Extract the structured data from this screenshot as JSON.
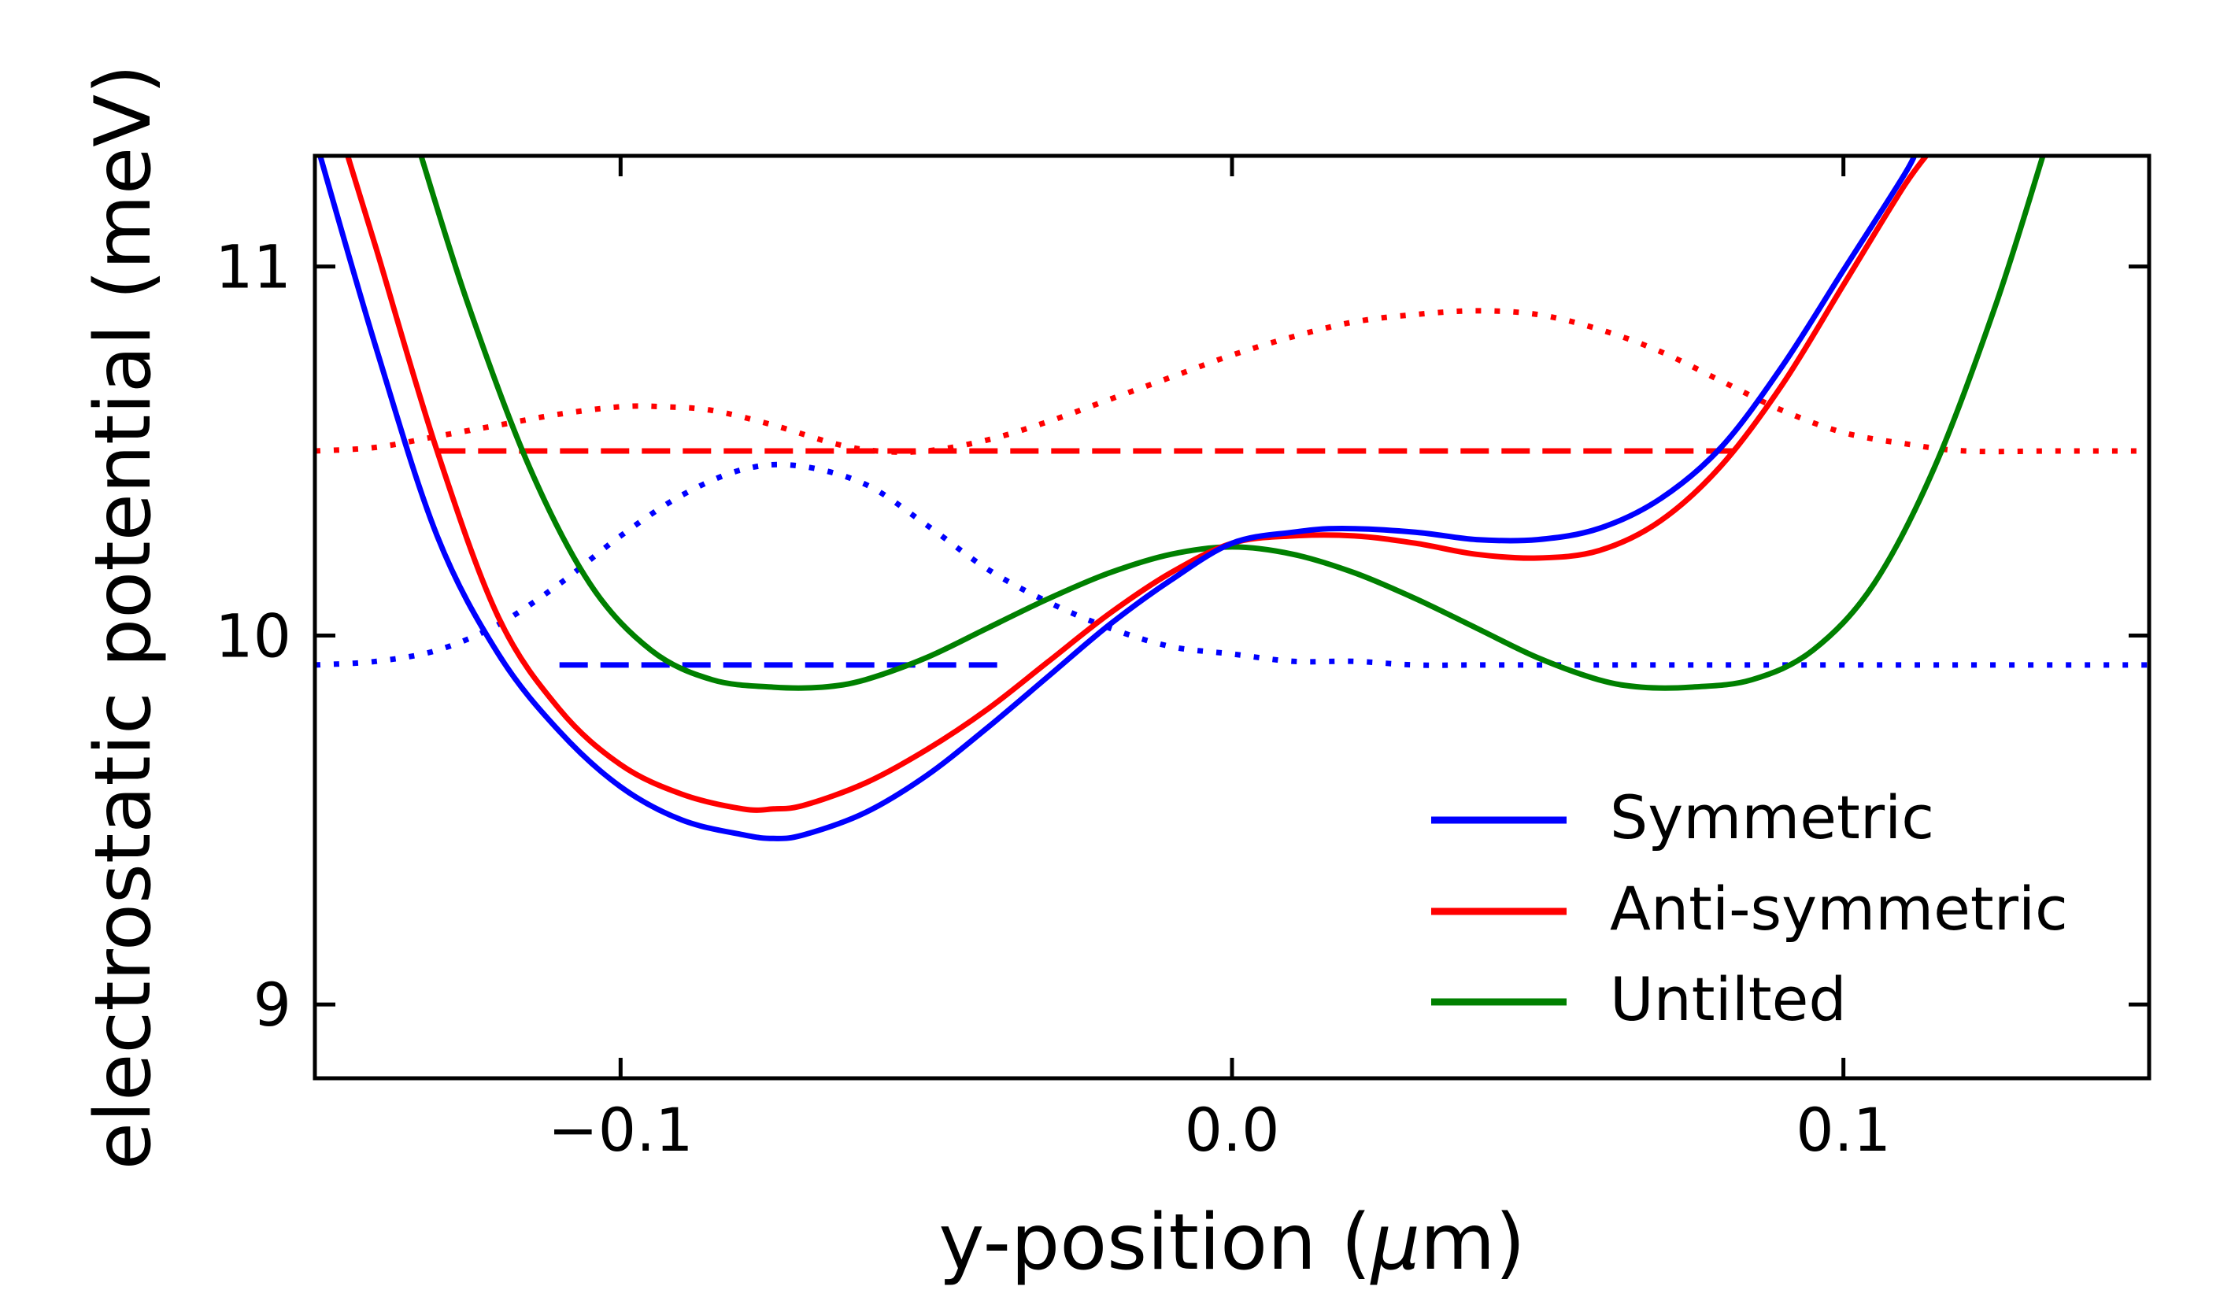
{
  "chart_data": {
    "type": "line",
    "xlabel": "y-position (",
    "xlabel_mu": "μ",
    "xlabel_tail": "m)",
    "ylabel": "electrostatic potential (meV)",
    "xlim": [
      -0.15,
      0.15
    ],
    "ylim": [
      8.8,
      11.3
    ],
    "xticks": [
      -0.1,
      0.0,
      0.1
    ],
    "xtick_labels": [
      "−0.1",
      "0.0",
      "0.1"
    ],
    "yticks": [
      9,
      10,
      11
    ],
    "ytick_labels": [
      "9",
      "10",
      "11"
    ],
    "legend_position": "lower-right",
    "colors": {
      "symmetric": "#0000ff",
      "antisymmetric": "#ff0000",
      "untilted": "#008000"
    },
    "series": [
      {
        "name": "Symmetric",
        "style": "solid",
        "color": "#0000ff",
        "x": [
          -0.15,
          -0.14,
          -0.13,
          -0.12,
          -0.11,
          -0.1,
          -0.09,
          -0.08,
          -0.075,
          -0.07,
          -0.06,
          -0.05,
          -0.04,
          -0.03,
          -0.02,
          -0.01,
          0.0,
          0.01,
          0.018,
          0.03,
          0.04,
          0.05,
          0.06,
          0.07,
          0.08,
          0.09,
          0.1,
          0.11,
          0.112
        ],
        "y": [
          11.35,
          10.78,
          10.27,
          9.95,
          9.74,
          9.59,
          9.5,
          9.46,
          9.45,
          9.46,
          9.52,
          9.62,
          9.75,
          9.89,
          10.03,
          10.15,
          10.25,
          10.28,
          10.29,
          10.28,
          10.26,
          10.26,
          10.29,
          10.37,
          10.51,
          10.73,
          10.99,
          11.25,
          11.32
        ]
      },
      {
        "name": "Anti-symmetric",
        "style": "solid",
        "color": "#ff0000",
        "x": [
          -0.145,
          -0.14,
          -0.13,
          -0.12,
          -0.11,
          -0.1,
          -0.09,
          -0.08,
          -0.075,
          -0.07,
          -0.06,
          -0.05,
          -0.04,
          -0.03,
          -0.02,
          -0.01,
          0.0,
          0.01,
          0.02,
          0.03,
          0.04,
          0.05,
          0.06,
          0.07,
          0.08,
          0.09,
          0.1,
          0.11,
          0.115
        ],
        "y": [
          11.32,
          11.05,
          10.5,
          10.05,
          9.8,
          9.65,
          9.57,
          9.53,
          9.53,
          9.54,
          9.6,
          9.69,
          9.8,
          9.93,
          10.06,
          10.17,
          10.25,
          10.27,
          10.27,
          10.25,
          10.22,
          10.21,
          10.23,
          10.31,
          10.46,
          10.68,
          10.95,
          11.22,
          11.33
        ]
      },
      {
        "name": "Untilted",
        "style": "solid",
        "color": "#008000",
        "x": [
          -0.133,
          -0.125,
          -0.115,
          -0.105,
          -0.095,
          -0.085,
          -0.075,
          -0.067,
          -0.06,
          -0.05,
          -0.04,
          -0.03,
          -0.02,
          -0.01,
          0.0,
          0.01,
          0.02,
          0.03,
          0.04,
          0.05,
          0.06,
          0.067,
          0.075,
          0.085,
          0.095,
          0.105,
          0.115,
          0.125,
          0.133
        ],
        "y": [
          11.32,
          10.9,
          10.46,
          10.14,
          9.96,
          9.88,
          9.86,
          9.86,
          9.88,
          9.94,
          10.02,
          10.1,
          10.17,
          10.22,
          10.24,
          10.22,
          10.17,
          10.1,
          10.02,
          9.94,
          9.88,
          9.86,
          9.86,
          9.88,
          9.96,
          10.14,
          10.46,
          10.9,
          11.32
        ]
      },
      {
        "name": "Symmetric energy level",
        "style": "dashed",
        "color": "#0000ff",
        "x": [
          -0.11,
          -0.037
        ],
        "y": [
          9.92,
          9.92
        ]
      },
      {
        "name": "Anti-symmetric energy level",
        "style": "dashed",
        "color": "#ff0000",
        "x": [
          -0.13,
          0.082
        ],
        "y": [
          10.5,
          10.5
        ]
      },
      {
        "name": "Symmetric wavefunction",
        "style": "dotted",
        "color": "#0000ff",
        "x": [
          -0.15,
          -0.14,
          -0.13,
          -0.12,
          -0.11,
          -0.1,
          -0.09,
          -0.08,
          -0.071,
          -0.06,
          -0.05,
          -0.04,
          -0.03,
          -0.02,
          -0.01,
          0.0,
          0.01,
          0.02,
          0.03,
          0.04,
          0.06,
          0.08,
          0.1,
          0.12,
          0.15
        ],
        "y": [
          9.92,
          9.93,
          9.96,
          10.03,
          10.14,
          10.27,
          10.38,
          10.45,
          10.46,
          10.41,
          10.3,
          10.18,
          10.09,
          10.02,
          9.97,
          9.95,
          9.93,
          9.93,
          9.92,
          9.92,
          9.92,
          9.92,
          9.92,
          9.92,
          9.92
        ]
      },
      {
        "name": "Anti-symmetric wavefunction",
        "style": "dotted",
        "color": "#ff0000",
        "x": [
          -0.15,
          -0.14,
          -0.13,
          -0.12,
          -0.11,
          -0.1,
          -0.093,
          -0.085,
          -0.075,
          -0.065,
          -0.058,
          -0.05,
          -0.04,
          -0.03,
          -0.02,
          -0.01,
          0.0,
          0.01,
          0.02,
          0.03,
          0.04,
          0.05,
          0.06,
          0.07,
          0.08,
          0.09,
          0.1,
          0.11,
          0.12,
          0.135,
          0.15
        ],
        "y": [
          10.5,
          10.51,
          10.54,
          10.57,
          10.6,
          10.62,
          10.62,
          10.61,
          10.57,
          10.52,
          10.5,
          10.5,
          10.53,
          10.58,
          10.64,
          10.7,
          10.76,
          10.81,
          10.85,
          10.87,
          10.88,
          10.87,
          10.83,
          10.77,
          10.69,
          10.61,
          10.55,
          10.52,
          10.5,
          10.5,
          10.5
        ]
      }
    ]
  }
}
